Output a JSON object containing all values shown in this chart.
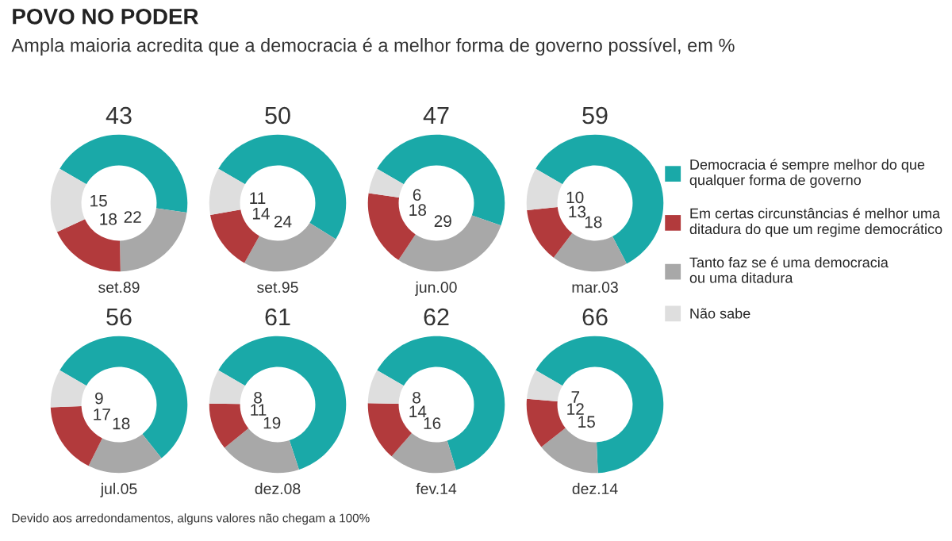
{
  "chart_data": [
    {
      "type": "donut",
      "title": "POVO NO PODER",
      "subtitle": "Ampla maioria acredita que a democracia é a melhor forma de governo possível, em %",
      "xlabel": "set.89",
      "categories": [
        "Democracia é sempre melhor do que\nqualquer forma de governo",
        "Em certas circunstâncias é melhor uma\nditadura do que um regime democrático",
        "Tanto faz se é uma democracia\nou uma ditadura",
        "Não sabe"
      ],
      "values": [
        43,
        18,
        22,
        15
      ],
      "colors": [
        "#1aa9a8",
        "#b23a3c",
        "#a8a8a8",
        "#dedede"
      ],
      "data_labels": true,
      "legend": "right",
      "annotations": [
        "Devido aos arredondamentos, alguns valores não chegam a 100%"
      ]
    },
    {
      "type": "donut",
      "xlabel": "set.95",
      "categories": [
        null,
        null,
        null,
        null
      ],
      "values": [
        50,
        14,
        24,
        11
      ],
      "colors": [
        "#1aa9a8",
        "#b23a3c",
        "#a8a8a8",
        "#dedede"
      ],
      "data_labels": true
    },
    {
      "type": "donut",
      "xlabel": "jun.00",
      "categories": [
        null,
        null,
        null,
        null
      ],
      "values": [
        47,
        18,
        29,
        6
      ],
      "colors": [
        "#1aa9a8",
        "#b23a3c",
        "#a8a8a8",
        "#dedede"
      ],
      "data_labels": true
    },
    {
      "type": "donut",
      "xlabel": "mar.03",
      "categories": [
        null,
        null,
        null,
        null
      ],
      "values": [
        59,
        13,
        18,
        10
      ],
      "colors": [
        "#1aa9a8",
        "#b23a3c",
        "#a8a8a8",
        "#dedede"
      ],
      "data_labels": true
    },
    {
      "type": "donut",
      "xlabel": "jul.05",
      "categories": [
        null,
        null,
        null,
        null
      ],
      "values": [
        56,
        17,
        18,
        9
      ],
      "colors": [
        "#1aa9a8",
        "#b23a3c",
        "#a8a8a8",
        "#dedede"
      ],
      "data_labels": true
    },
    {
      "type": "donut",
      "xlabel": "dez.08",
      "categories": [
        null,
        null,
        null,
        null
      ],
      "values": [
        61,
        11,
        19,
        8
      ],
      "colors": [
        "#1aa9a8",
        "#b23a3c",
        "#a8a8a8",
        "#dedede"
      ],
      "data_labels": true
    },
    {
      "type": "donut",
      "xlabel": "fev.14",
      "categories": [
        null,
        null,
        null,
        null
      ],
      "values": [
        62,
        14,
        16,
        8
      ],
      "colors": [
        "#1aa9a8",
        "#b23a3c",
        "#a8a8a8",
        "#dedede"
      ],
      "data_labels": true
    },
    {
      "type": "donut",
      "xlabel": "dez.14",
      "categories": [
        null,
        null,
        null,
        null
      ],
      "values": [
        66,
        12,
        15,
        7
      ],
      "colors": [
        "#1aa9a8",
        "#b23a3c",
        "#a8a8a8",
        "#dedede"
      ],
      "data_labels": true
    }
  ]
}
